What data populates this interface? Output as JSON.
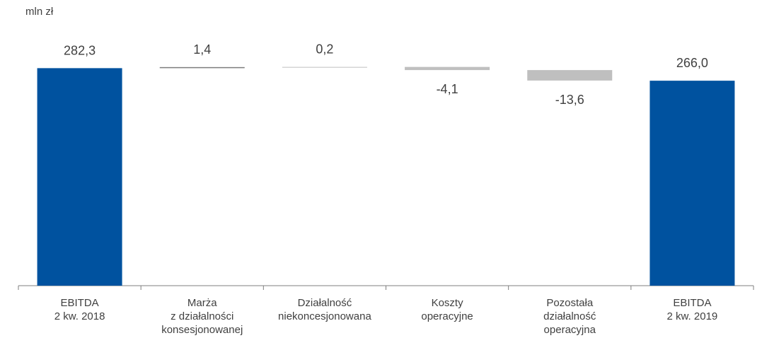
{
  "chart_data": {
    "type": "waterfall",
    "unit_label": "mln zł",
    "categories": [
      [
        "EBITDA",
        "2 kw. 2018"
      ],
      [
        "Marża",
        "z działalności",
        "konsesjonowanej"
      ],
      [
        "Działalność",
        "niekoncesjonowana"
      ],
      [
        "Koszty",
        "operacyjne"
      ],
      [
        "Pozostała",
        "działalność",
        "operacyjna"
      ],
      [
        "EBITDA",
        "2 kw. 2019"
      ]
    ],
    "steps": [
      {
        "kind": "total",
        "value": 282.3,
        "label": "282,3"
      },
      {
        "kind": "delta",
        "value": 1.4,
        "label": "1,4"
      },
      {
        "kind": "delta",
        "value": 0.2,
        "label": "0,2"
      },
      {
        "kind": "delta",
        "value": -4.1,
        "label": "-4,1"
      },
      {
        "kind": "delta",
        "value": -13.6,
        "label": "-13,6"
      },
      {
        "kind": "total",
        "value": 266.0,
        "label": "266,0"
      }
    ],
    "colors": {
      "total": "#00529f",
      "positive": "#7f7f7f",
      "positive_small": "#bfbfbf",
      "negative": "#bfbfbf",
      "axis": "#7f7f7f"
    }
  }
}
